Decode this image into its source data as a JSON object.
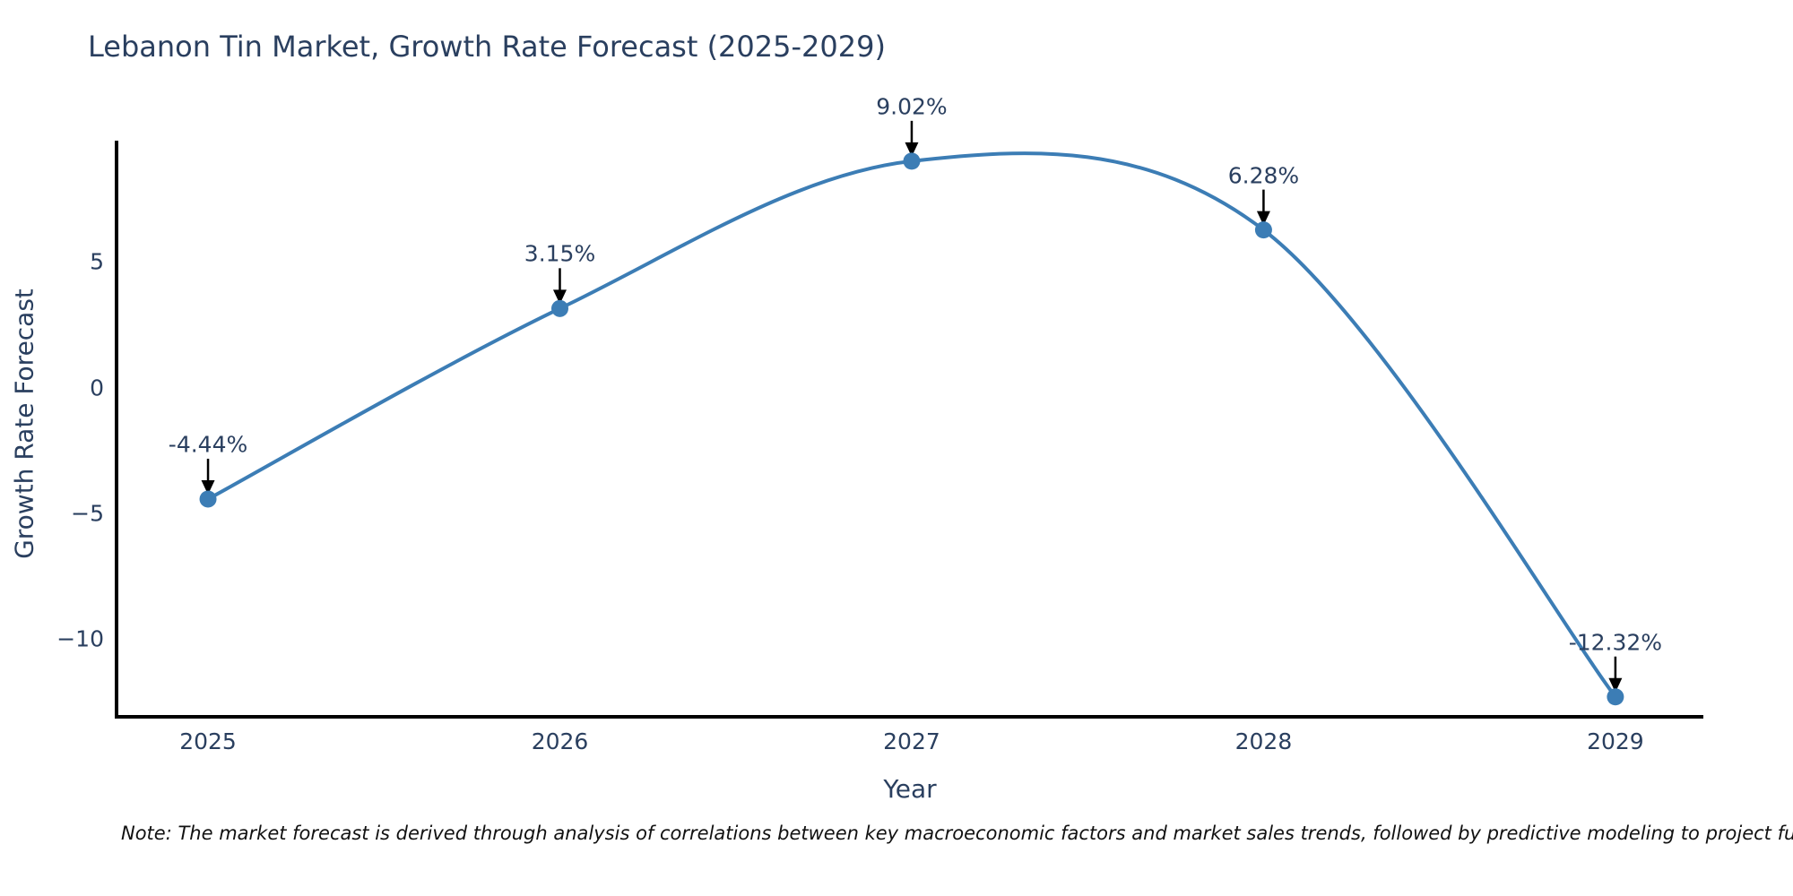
{
  "chart_data": {
    "type": "line",
    "title": "Lebanon Tin Market, Growth Rate Forecast (2025-2029)",
    "xlabel": "Year",
    "ylabel": "Growth Rate Forecast",
    "x": [
      2025,
      2026,
      2027,
      2028,
      2029
    ],
    "y": [
      -4.44,
      3.15,
      9.02,
      6.28,
      -12.32
    ],
    "point_labels": [
      "-4.44%",
      "3.15%",
      "9.02%",
      "6.28%",
      "-12.32%"
    ],
    "x_tick_labels": [
      "2025",
      "2026",
      "2027",
      "2028",
      "2029"
    ],
    "y_tick_labels": [
      "5",
      "0",
      "−5",
      "−10"
    ],
    "y_tick_values": [
      5,
      0,
      -5,
      -10
    ],
    "xlim": [
      2024.74,
      2029.25
    ],
    "ylim": [
      -13.15,
      9.8
    ],
    "line_shape": "spline",
    "grid": false,
    "legend": "none",
    "colors": {
      "line": "#3c7db5",
      "marker": "#3c7db5",
      "annotation_arrow": "#000000",
      "axis_line": "#000000",
      "text": "#2a3f5f",
      "note_text": "#111111"
    }
  },
  "note": {
    "text": "Note: The market forecast is derived through analysis of correlations between key macroeconomic factors and market sales trends, followed by predictive modeling to project future sales"
  }
}
